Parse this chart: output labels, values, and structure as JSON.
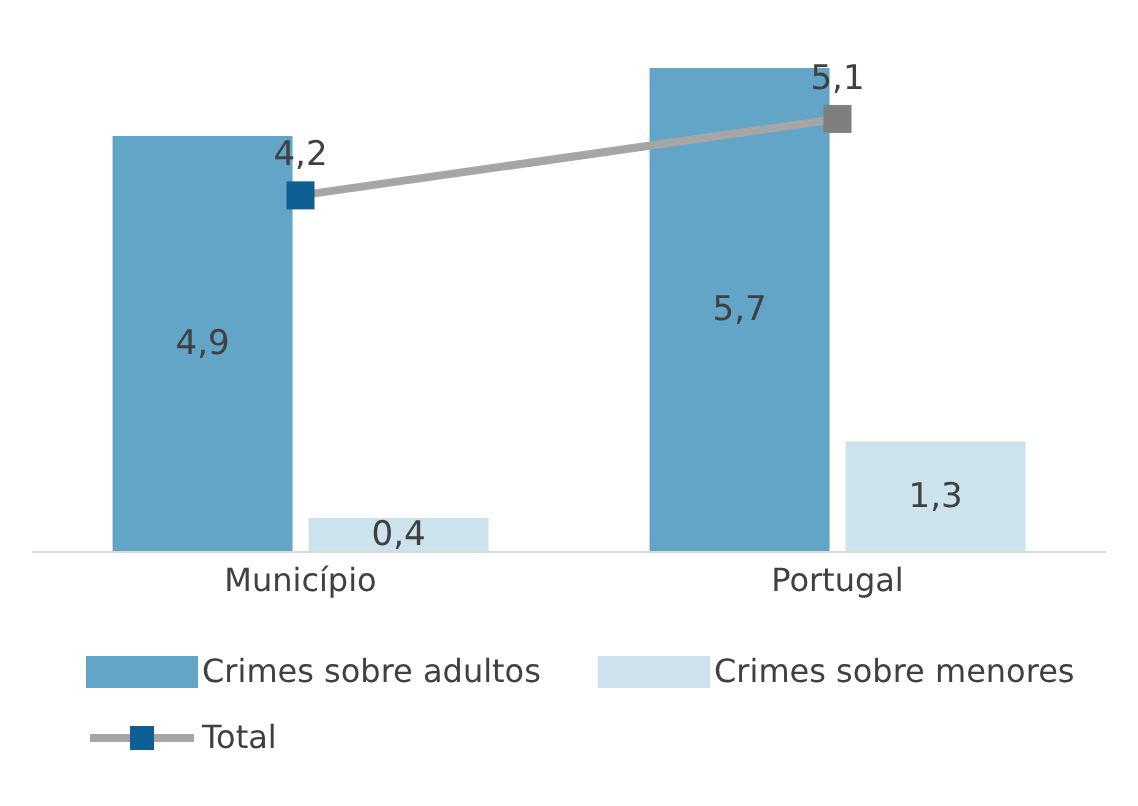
{
  "chart_data": {
    "type": "bar",
    "categories": [
      "Município",
      "Portugal"
    ],
    "series": [
      {
        "name": "Crimes sobre adultos",
        "color": "#63a5c7",
        "values": [
          4.9,
          5.7
        ],
        "value_labels": [
          "4,9",
          "5,7"
        ]
      },
      {
        "name": "Crimes sobre menores",
        "color": "#cce2ec",
        "values": [
          0.4,
          1.3
        ],
        "value_labels": [
          "0,4",
          "1,3"
        ]
      },
      {
        "name": "Total",
        "type": "line",
        "color": "#a6a6a6",
        "colors": [
          "#0f5f95",
          "#7f7f7f"
        ],
        "marker": "square",
        "values": [
          4.2,
          5.1
        ],
        "value_labels": [
          "4,2",
          "5,1"
        ]
      }
    ],
    "legend": "bottom"
  }
}
